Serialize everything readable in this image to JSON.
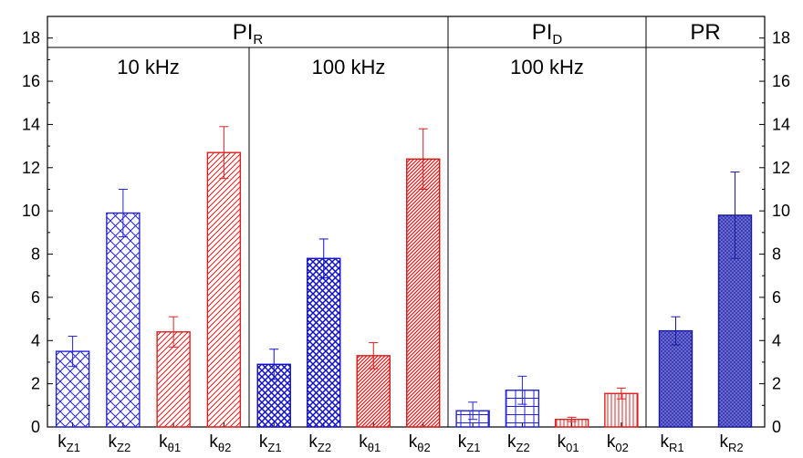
{
  "chart_data": {
    "type": "bar",
    "ylim": [
      0,
      19
    ],
    "yticks": [
      0,
      2,
      4,
      6,
      8,
      10,
      12,
      14,
      16,
      18
    ],
    "grid": false,
    "panels": [
      {
        "header": "PI",
        "header_sub": "R",
        "groups": [
          {
            "label": "10 kHz",
            "bars": [
              {
                "label": "k",
                "sub": "Z1",
                "value": 3.5,
                "err": 0.7,
                "color": "#2323d6",
                "pattern": "cross"
              },
              {
                "label": "k",
                "sub": "Z2",
                "value": 9.9,
                "err": 1.1,
                "color": "#2323d6",
                "pattern": "cross"
              },
              {
                "label": "k",
                "sub": "θ1",
                "value": 4.4,
                "err": 0.7,
                "color": "#e02020",
                "pattern": "diag"
              },
              {
                "label": "k",
                "sub": "θ2",
                "value": 12.7,
                "err": 1.2,
                "color": "#e02020",
                "pattern": "diag"
              }
            ]
          },
          {
            "label": "100 kHz",
            "bars": [
              {
                "label": "k",
                "sub": "Z1",
                "value": 2.9,
                "err": 0.7,
                "color": "#1010c8",
                "pattern": "cross-dense"
              },
              {
                "label": "k",
                "sub": "Z2",
                "value": 7.8,
                "err": 0.9,
                "color": "#1010c8",
                "pattern": "cross-dense"
              },
              {
                "label": "k",
                "sub": "θ1",
                "value": 3.3,
                "err": 0.6,
                "color": "#d81818",
                "pattern": "diag-dense"
              },
              {
                "label": "k",
                "sub": "θ2",
                "value": 12.4,
                "err": 1.4,
                "color": "#d81818",
                "pattern": "diag-dense"
              }
            ]
          }
        ]
      },
      {
        "header": "PI",
        "header_sub": "D",
        "groups": [
          {
            "label": "100 kHz",
            "bars": [
              {
                "label": "k",
                "sub": "Z1",
                "value": 0.75,
                "err": 0.4,
                "color": "#2323d6",
                "pattern": "grid"
              },
              {
                "label": "k",
                "sub": "Z2",
                "value": 1.7,
                "err": 0.65,
                "color": "#2323d6",
                "pattern": "grid"
              },
              {
                "label": "k",
                "sub": "01",
                "value": 0.35,
                "err": 0.1,
                "color": "#e02020",
                "pattern": "vert"
              },
              {
                "label": "k",
                "sub": "02",
                "value": 1.55,
                "err": 0.25,
                "color": "#e02020",
                "pattern": "vert"
              }
            ]
          }
        ]
      },
      {
        "header": "PR",
        "header_sub": "",
        "groups": [
          {
            "label": "",
            "bars": [
              {
                "label": "k",
                "sub": "R1",
                "value": 4.45,
                "err": 0.65,
                "color": "#1a1aa0",
                "pattern": "dots"
              },
              {
                "label": "k",
                "sub": "R2",
                "value": 9.8,
                "err": 2.0,
                "color": "#1a1aa0",
                "pattern": "dots"
              }
            ]
          }
        ]
      }
    ]
  }
}
